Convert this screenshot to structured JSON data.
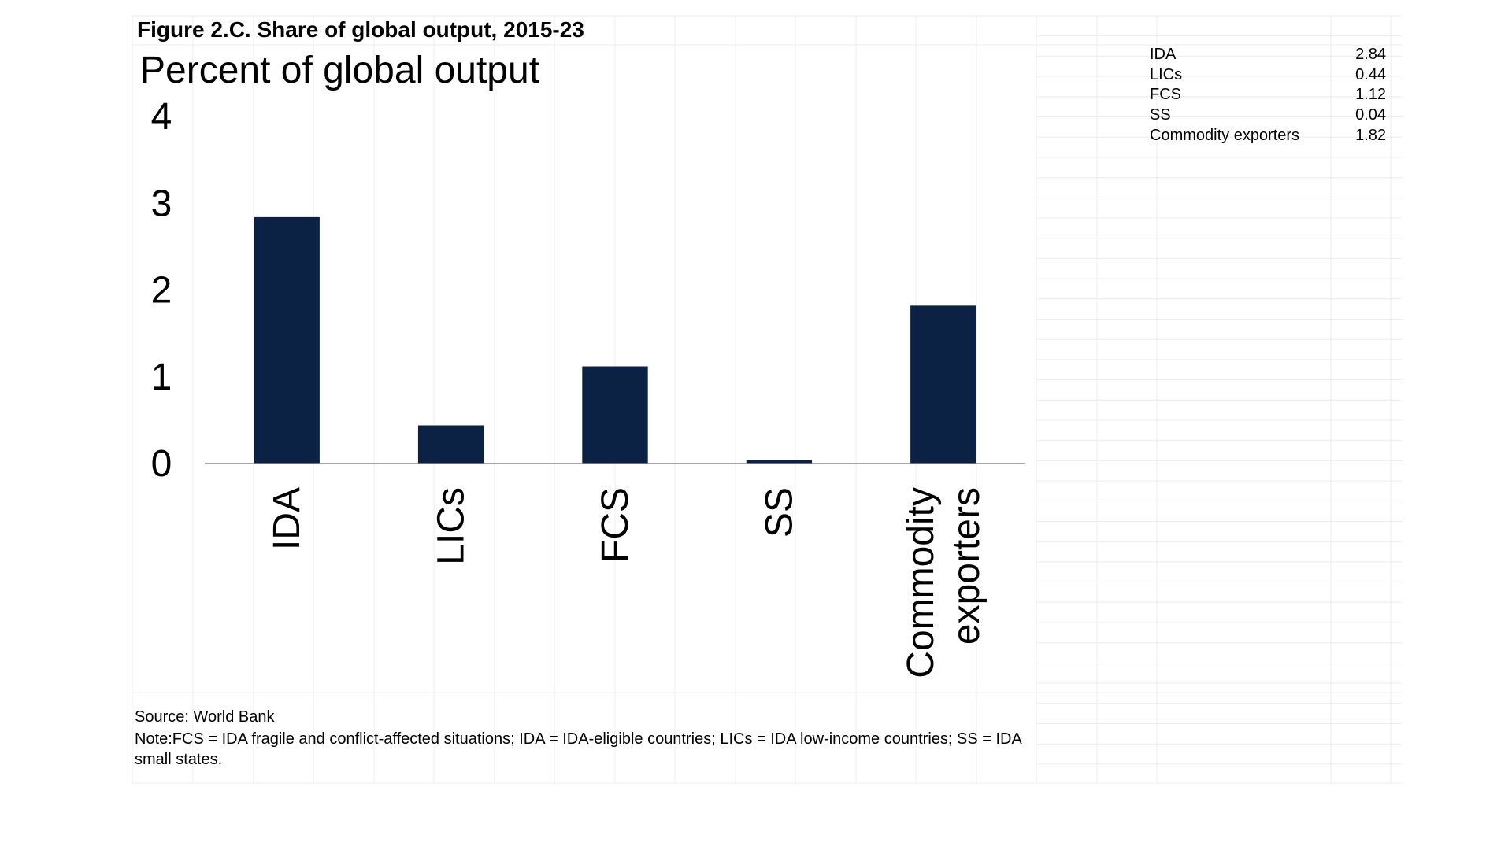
{
  "figure": {
    "title": "Figure 2.C. Share of global output, 2015-23",
    "unit_label": "Percent of global output"
  },
  "chart_data": {
    "type": "bar",
    "categories": [
      "IDA",
      "LICs",
      "FCS",
      "SS",
      "Commodity exporters"
    ],
    "values": [
      2.84,
      0.44,
      1.12,
      0.04,
      1.82
    ],
    "title": "Figure 2.C. Share of global output, 2015-23",
    "ylabel": "Percent of global output",
    "xlabel": "",
    "ylim": [
      0,
      4
    ],
    "yticks": [
      0,
      1,
      2,
      3,
      4
    ],
    "bar_color": "#0b2244",
    "grid": false,
    "legend": "none"
  },
  "data_table": {
    "rows": [
      {
        "category": "IDA",
        "value": "2.84"
      },
      {
        "category": "LICs",
        "value": "0.44"
      },
      {
        "category": "FCS",
        "value": "1.12"
      },
      {
        "category": "SS",
        "value": "0.04"
      },
      {
        "category": "Commodity exporters",
        "value": "1.82"
      }
    ]
  },
  "footer": {
    "source": "Source: World Bank",
    "note": "Note:FCS = IDA fragile and conflict-affected situations; IDA = IDA-eligible countries; LICs = IDA low-income countries; SS = IDA small states."
  }
}
